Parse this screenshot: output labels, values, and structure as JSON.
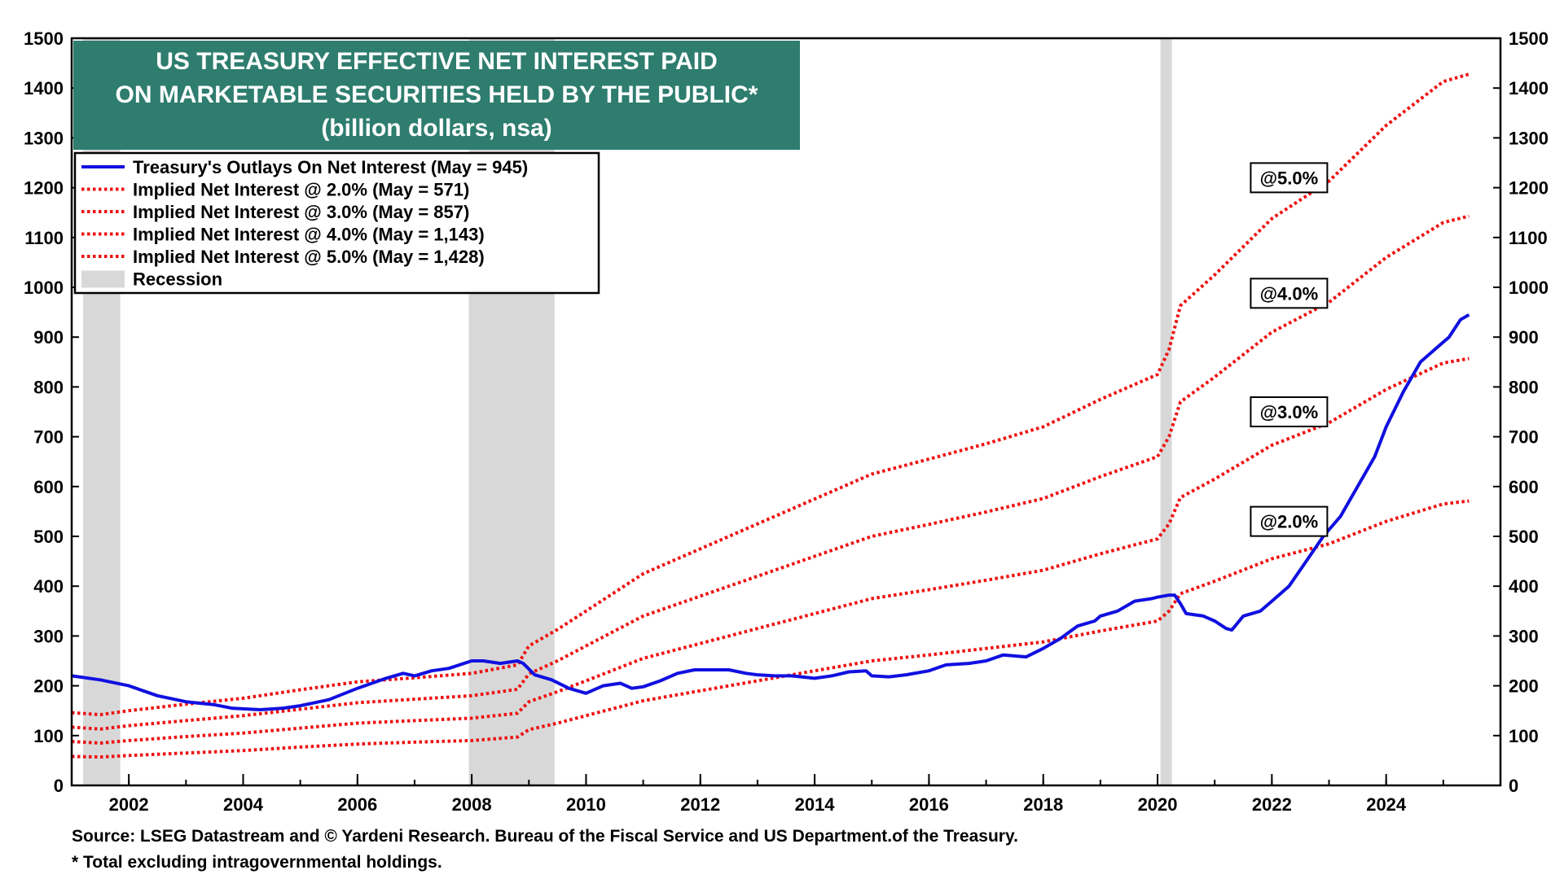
{
  "chart_data": {
    "type": "line",
    "title": [
      "US TREASURY EFFECTIVE NET INTEREST PAID",
      "ON MARKETABLE SECURITIES HELD BY THE PUBLIC*",
      "(billion dollars, nsa)"
    ],
    "xlim": [
      2001.0,
      2026.0
    ],
    "ylim": [
      0,
      1500
    ],
    "x_ticks": [
      "2002",
      "2004",
      "2006",
      "2008",
      "2010",
      "2012",
      "2014",
      "2016",
      "2018",
      "2020",
      "2022",
      "2024"
    ],
    "y_ticks_left": [
      "0",
      "100",
      "200",
      "300",
      "400",
      "500",
      "600",
      "700",
      "800",
      "900",
      "1000",
      "1100",
      "1200",
      "1300",
      "1400",
      "1500"
    ],
    "y_ticks_right": [
      "0",
      "100",
      "200",
      "300",
      "400",
      "500",
      "600",
      "700",
      "800",
      "900",
      "1000",
      "1100",
      "1200",
      "1300",
      "1400",
      "1500"
    ],
    "grid": false,
    "legend_position": "top-left",
    "recessions": [
      [
        2001.2,
        2001.85
      ],
      [
        2007.95,
        2009.45
      ],
      [
        2020.05,
        2020.25
      ]
    ],
    "series": [
      {
        "name": "Treasury's Outlays On Net Interest (May = 945)",
        "style": "solid",
        "color": "#1010e0",
        "points": [
          [
            2001.0,
            220
          ],
          [
            2001.5,
            212
          ],
          [
            2002.0,
            200
          ],
          [
            2002.5,
            180
          ],
          [
            2003.0,
            168
          ],
          [
            2003.5,
            162
          ],
          [
            2003.8,
            155
          ],
          [
            2004.3,
            152
          ],
          [
            2004.7,
            155
          ],
          [
            2005.0,
            160
          ],
          [
            2005.5,
            172
          ],
          [
            2006.0,
            195
          ],
          [
            2006.5,
            215
          ],
          [
            2006.8,
            225
          ],
          [
            2007.0,
            220
          ],
          [
            2007.3,
            230
          ],
          [
            2007.6,
            235
          ],
          [
            2008.0,
            250
          ],
          [
            2008.2,
            250
          ],
          [
            2008.5,
            245
          ],
          [
            2008.8,
            250
          ],
          [
            2008.9,
            245
          ],
          [
            2009.1,
            222
          ],
          [
            2009.4,
            212
          ],
          [
            2009.7,
            195
          ],
          [
            2010.0,
            185
          ],
          [
            2010.3,
            200
          ],
          [
            2010.6,
            205
          ],
          [
            2010.8,
            195
          ],
          [
            2011.0,
            198
          ],
          [
            2011.3,
            210
          ],
          [
            2011.6,
            225
          ],
          [
            2011.9,
            232
          ],
          [
            2012.0,
            232
          ],
          [
            2012.5,
            232
          ],
          [
            2012.8,
            225
          ],
          [
            2013.0,
            222
          ],
          [
            2013.3,
            220
          ],
          [
            2013.6,
            220
          ],
          [
            2014.0,
            215
          ],
          [
            2014.3,
            220
          ],
          [
            2014.6,
            228
          ],
          [
            2014.9,
            230
          ],
          [
            2015.0,
            220
          ],
          [
            2015.3,
            218
          ],
          [
            2015.6,
            222
          ],
          [
            2016.0,
            230
          ],
          [
            2016.3,
            242
          ],
          [
            2016.7,
            245
          ],
          [
            2017.0,
            250
          ],
          [
            2017.3,
            262
          ],
          [
            2017.7,
            258
          ],
          [
            2018.0,
            275
          ],
          [
            2018.3,
            295
          ],
          [
            2018.6,
            320
          ],
          [
            2018.9,
            330
          ],
          [
            2019.0,
            340
          ],
          [
            2019.3,
            350
          ],
          [
            2019.6,
            370
          ],
          [
            2019.9,
            375
          ],
          [
            2020.0,
            378
          ],
          [
            2020.2,
            382
          ],
          [
            2020.3,
            382
          ],
          [
            2020.4,
            365
          ],
          [
            2020.5,
            345
          ],
          [
            2020.8,
            340
          ],
          [
            2021.0,
            330
          ],
          [
            2021.2,
            315
          ],
          [
            2021.3,
            312
          ],
          [
            2021.5,
            340
          ],
          [
            2021.8,
            350
          ],
          [
            2022.0,
            370
          ],
          [
            2022.3,
            400
          ],
          [
            2022.6,
            450
          ],
          [
            2022.9,
            500
          ],
          [
            2023.2,
            540
          ],
          [
            2023.5,
            600
          ],
          [
            2023.8,
            660
          ],
          [
            2024.0,
            720
          ],
          [
            2024.3,
            790
          ],
          [
            2024.6,
            850
          ],
          [
            2024.9,
            880
          ],
          [
            2025.1,
            900
          ],
          [
            2025.3,
            935
          ],
          [
            2025.45,
            945
          ]
        ]
      },
      {
        "name": "Implied Net Interest @ 2.0% (May = 571)",
        "style": "dotted",
        "color": "#ee1111",
        "points": [
          [
            2001.0,
            58
          ],
          [
            2001.5,
            57
          ],
          [
            2002.0,
            60
          ],
          [
            2003.0,
            65
          ],
          [
            2004.0,
            70
          ],
          [
            2005.0,
            77
          ],
          [
            2006.0,
            83
          ],
          [
            2007.0,
            87
          ],
          [
            2008.0,
            90
          ],
          [
            2008.8,
            97
          ],
          [
            2009.0,
            112
          ],
          [
            2009.5,
            125
          ],
          [
            2010.0,
            140
          ],
          [
            2011.0,
            170
          ],
          [
            2012.0,
            190
          ],
          [
            2013.0,
            210
          ],
          [
            2014.0,
            230
          ],
          [
            2015.0,
            250
          ],
          [
            2016.0,
            262
          ],
          [
            2017.0,
            275
          ],
          [
            2018.0,
            288
          ],
          [
            2019.0,
            310
          ],
          [
            2020.0,
            330
          ],
          [
            2020.2,
            350
          ],
          [
            2020.4,
            385
          ],
          [
            2021.0,
            410
          ],
          [
            2022.0,
            455
          ],
          [
            2023.0,
            485
          ],
          [
            2024.0,
            530
          ],
          [
            2025.0,
            565
          ],
          [
            2025.45,
            571
          ]
        ]
      },
      {
        "name": "Implied Net Interest @ 3.0% (May = 857)",
        "style": "dotted",
        "color": "#ee1111",
        "points": [
          [
            2001.0,
            88
          ],
          [
            2001.5,
            85
          ],
          [
            2002.0,
            90
          ],
          [
            2003.0,
            98
          ],
          [
            2004.0,
            105
          ],
          [
            2005.0,
            115
          ],
          [
            2006.0,
            125
          ],
          [
            2007.0,
            130
          ],
          [
            2008.0,
            135
          ],
          [
            2008.8,
            145
          ],
          [
            2009.0,
            168
          ],
          [
            2009.5,
            188
          ],
          [
            2010.0,
            210
          ],
          [
            2011.0,
            255
          ],
          [
            2012.0,
            285
          ],
          [
            2013.0,
            315
          ],
          [
            2014.0,
            345
          ],
          [
            2015.0,
            375
          ],
          [
            2016.0,
            393
          ],
          [
            2017.0,
            412
          ],
          [
            2018.0,
            432
          ],
          [
            2019.0,
            465
          ],
          [
            2020.0,
            495
          ],
          [
            2020.2,
            525
          ],
          [
            2020.4,
            578
          ],
          [
            2021.0,
            615
          ],
          [
            2022.0,
            683
          ],
          [
            2023.0,
            728
          ],
          [
            2024.0,
            795
          ],
          [
            2025.0,
            848
          ],
          [
            2025.45,
            857
          ]
        ]
      },
      {
        "name": "Implied Net Interest @ 4.0% (May = 1,143)",
        "style": "dotted",
        "color": "#ee1111",
        "points": [
          [
            2001.0,
            117
          ],
          [
            2001.5,
            113
          ],
          [
            2002.0,
            120
          ],
          [
            2003.0,
            130
          ],
          [
            2004.0,
            140
          ],
          [
            2005.0,
            153
          ],
          [
            2006.0,
            166
          ],
          [
            2007.0,
            173
          ],
          [
            2008.0,
            180
          ],
          [
            2008.8,
            193
          ],
          [
            2009.0,
            224
          ],
          [
            2009.5,
            250
          ],
          [
            2010.0,
            280
          ],
          [
            2011.0,
            340
          ],
          [
            2012.0,
            380
          ],
          [
            2013.0,
            420
          ],
          [
            2014.0,
            460
          ],
          [
            2015.0,
            500
          ],
          [
            2016.0,
            524
          ],
          [
            2017.0,
            549
          ],
          [
            2018.0,
            576
          ],
          [
            2019.0,
            620
          ],
          [
            2020.0,
            660
          ],
          [
            2020.2,
            700
          ],
          [
            2020.4,
            770
          ],
          [
            2021.0,
            820
          ],
          [
            2022.0,
            910
          ],
          [
            2023.0,
            970
          ],
          [
            2024.0,
            1060
          ],
          [
            2025.0,
            1130
          ],
          [
            2025.45,
            1143
          ]
        ]
      },
      {
        "name": "Implied Net Interest @ 5.0% (May = 1,428)",
        "style": "dotted",
        "color": "#ee1111",
        "points": [
          [
            2001.0,
            146
          ],
          [
            2001.5,
            142
          ],
          [
            2002.0,
            150
          ],
          [
            2003.0,
            163
          ],
          [
            2004.0,
            175
          ],
          [
            2005.0,
            192
          ],
          [
            2006.0,
            208
          ],
          [
            2007.0,
            216
          ],
          [
            2008.0,
            225
          ],
          [
            2008.8,
            242
          ],
          [
            2009.0,
            280
          ],
          [
            2009.5,
            313
          ],
          [
            2010.0,
            350
          ],
          [
            2011.0,
            425
          ],
          [
            2012.0,
            475
          ],
          [
            2013.0,
            525
          ],
          [
            2014.0,
            575
          ],
          [
            2015.0,
            625
          ],
          [
            2016.0,
            655
          ],
          [
            2017.0,
            686
          ],
          [
            2018.0,
            720
          ],
          [
            2019.0,
            775
          ],
          [
            2020.0,
            825
          ],
          [
            2020.2,
            875
          ],
          [
            2020.4,
            963
          ],
          [
            2021.0,
            1025
          ],
          [
            2022.0,
            1138
          ],
          [
            2023.0,
            1213
          ],
          [
            2024.0,
            1325
          ],
          [
            2025.0,
            1413
          ],
          [
            2025.45,
            1428
          ]
        ]
      }
    ],
    "legend": [
      {
        "label": "Treasury's Outlays On Net Interest (May = 945)",
        "style": "solid",
        "color": "#1010e0"
      },
      {
        "label": "Implied Net Interest @ 2.0% (May = 571)",
        "style": "dotted",
        "color": "#ee1111"
      },
      {
        "label": "Implied Net Interest @ 3.0% (May = 857)",
        "style": "dotted",
        "color": "#ee1111"
      },
      {
        "label": "Implied Net Interest @ 4.0% (May = 1,143)",
        "style": "dotted",
        "color": "#ee1111"
      },
      {
        "label": "Implied Net Interest @ 5.0% (May = 1,428)",
        "style": "dotted",
        "color": "#ee1111"
      },
      {
        "label": "Recession",
        "style": "box",
        "color": "#d8d8d8"
      }
    ],
    "annotations": [
      {
        "text": "@5.0%",
        "x": 2022.3,
        "y": 1220
      },
      {
        "text": "@4.0%",
        "x": 2022.3,
        "y": 988
      },
      {
        "text": "@3.0%",
        "x": 2022.3,
        "y": 750
      },
      {
        "text": "@2.0%",
        "x": 2022.3,
        "y": 530
      }
    ]
  },
  "colors": {
    "title_bg": "#2e7d6e",
    "recession": "#d8d8d8"
  },
  "footer": {
    "source": "Source: LSEG Datastream and © Yardeni Research. Bureau of the Fiscal Service and US Department.of the Treasury.",
    "footnote": "* Total excluding intragovernmental holdings."
  }
}
